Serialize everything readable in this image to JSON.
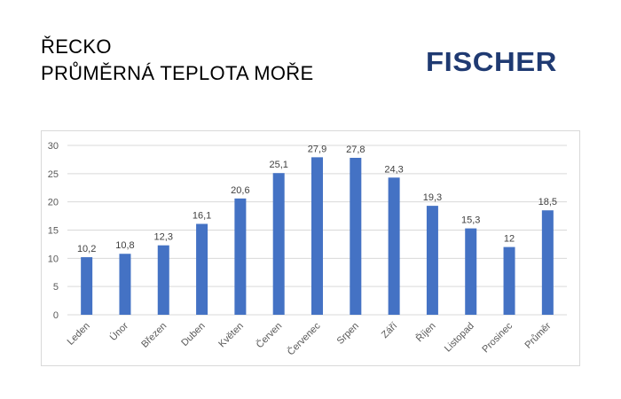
{
  "header": {
    "title_line1": "ŘECKO",
    "title_line2": "PRŮMĚRNÁ TEPLOTA MOŘE",
    "logo_text": "FISCHER"
  },
  "colors": {
    "bar": "#4472c4",
    "grid": "#d9d9d9",
    "axis_text": "#595959",
    "label_text": "#404040",
    "logo": "#1f3a72"
  },
  "chart_data": {
    "type": "bar",
    "title": "",
    "xlabel": "",
    "ylabel": "",
    "categories": [
      "Leden",
      "Únor",
      "Březen",
      "Duben",
      "Květen",
      "Červen",
      "Červenec",
      "Srpen",
      "Září",
      "Říjen",
      "Listopad",
      "Prosinec",
      "Průměr"
    ],
    "values": [
      10.2,
      10.8,
      12.3,
      16.1,
      20.6,
      25.1,
      27.9,
      27.8,
      24.3,
      19.3,
      15.3,
      12,
      18.5
    ],
    "value_labels": [
      "10,2",
      "10,8",
      "12,3",
      "16,1",
      "20,6",
      "25,1",
      "27,9",
      "27,8",
      "24,3",
      "19,3",
      "15,3",
      "12",
      "18,5"
    ],
    "y_ticks": [
      "0",
      "5",
      "10",
      "15",
      "20",
      "25",
      "30"
    ],
    "ylim": [
      0,
      30
    ],
    "grid": true,
    "legend": "none"
  }
}
